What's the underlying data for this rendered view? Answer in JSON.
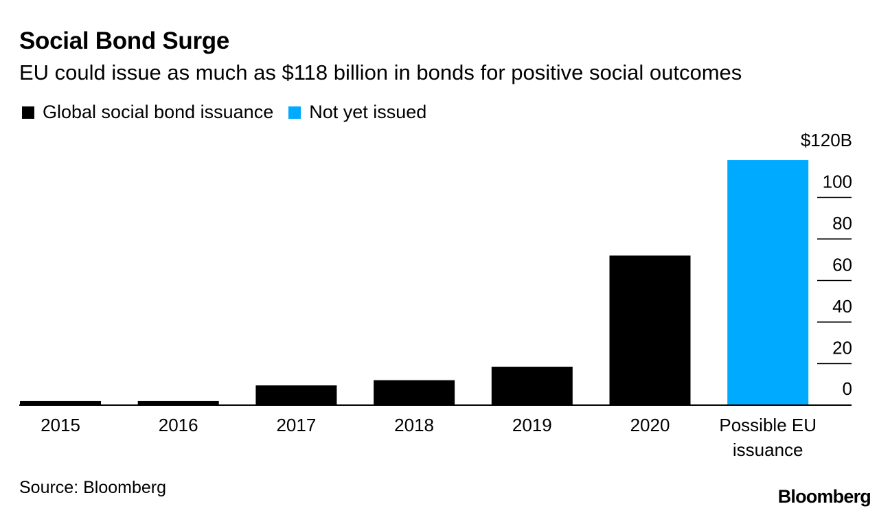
{
  "header": {
    "title": "Social Bond Surge",
    "subtitle": "EU could issue as much as $118 billion in bonds for positive social outcomes"
  },
  "legend": [
    {
      "label": "Global social bond issuance",
      "color": "#000000"
    },
    {
      "label": "Not yet issued",
      "color": "#00aaff"
    }
  ],
  "chart_data": {
    "type": "bar",
    "categories": [
      "2015",
      "2016",
      "2017",
      "2018",
      "2019",
      "2020",
      "Possible EU issuance"
    ],
    "category_lines": [
      [
        "2015"
      ],
      [
        "2016"
      ],
      [
        "2017"
      ],
      [
        "2018"
      ],
      [
        "2019"
      ],
      [
        "2020"
      ],
      [
        "Possible EU",
        "issuance"
      ]
    ],
    "values": [
      2,
      2,
      9.5,
      12,
      18.5,
      72,
      118
    ],
    "series_of_bar": [
      "Global social bond issuance",
      "Global social bond issuance",
      "Global social bond issuance",
      "Global social bond issuance",
      "Global social bond issuance",
      "Global social bond issuance",
      "Not yet issued"
    ],
    "colors": [
      "#000000",
      "#000000",
      "#000000",
      "#000000",
      "#000000",
      "#000000",
      "#00aaff"
    ],
    "ylim": [
      0,
      120
    ],
    "y_ticks": [
      0,
      20,
      40,
      60,
      80,
      100,
      120
    ],
    "y_tick_labels": [
      "0",
      "20",
      "40",
      "60",
      "80",
      "100",
      "$120B"
    ],
    "axis_side": "right",
    "title": "Social Bond Surge",
    "xlabel": "",
    "ylabel": ""
  },
  "footer": {
    "source": "Source: Bloomberg",
    "brand": "Bloomberg"
  }
}
